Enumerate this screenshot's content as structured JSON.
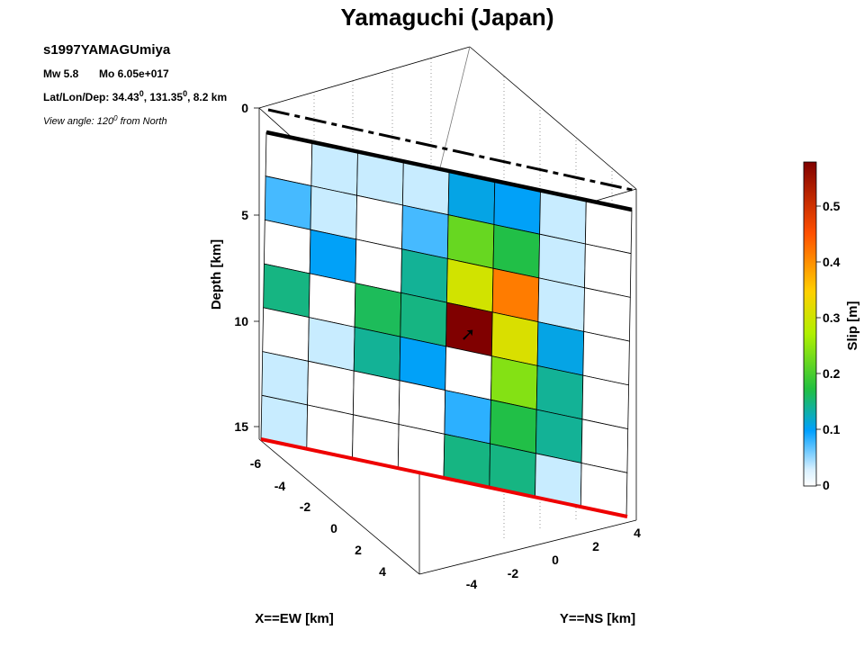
{
  "chart_data": {
    "type": "heatmap",
    "title": "Yamaguchi (Japan)",
    "event_id": "s1997YAMAGUmiya",
    "magnitude_text": "Mw 5.8",
    "moment_text": "Mo 6.05e+017",
    "location_prefix": "Lat/Lon/Dep: 34.43",
    "location_lon": ", 131.35",
    "location_dep": ", 8.2 km",
    "degree_symbol": "0",
    "view_prefix": "View angle: 120",
    "view_suffix": " from North",
    "zlabel": "Depth [km]",
    "xlabel": "X==EW [km]",
    "ylabel": "Y==NS [km]",
    "colorbar_label": "Slip [m]",
    "depth_ticks": [
      "0",
      "5",
      "10",
      "15"
    ],
    "x_ticks": [
      "-6",
      "-4",
      "-2",
      "0",
      "2",
      "4"
    ],
    "y_ticks": [
      "-4",
      "-2",
      "0",
      "2",
      "4"
    ],
    "colorbar_ticks": [
      "0",
      "0.1",
      "0.2",
      "0.3",
      "0.4",
      "0.5"
    ],
    "clim": [
      0,
      0.58
    ],
    "colormap": [
      "#ffffff",
      "#00a0ff",
      "#22c040",
      "#b0f000",
      "#ffd000",
      "#ff5000",
      "#800000"
    ],
    "grid_rows": 7,
    "grid_cols": 8,
    "slip": [
      [
        0.0,
        0.04,
        0.03,
        0.02,
        0.11,
        0.1,
        0.02,
        0.0
      ],
      [
        0.07,
        0.02,
        0.0,
        0.07,
        0.24,
        0.19,
        0.02,
        0.0
      ],
      [
        0.0,
        0.1,
        0.0,
        0.15,
        0.33,
        0.45,
        0.02,
        0.0
      ],
      [
        0.16,
        0.0,
        0.18,
        0.16,
        0.58,
        0.34,
        0.11,
        0.0
      ],
      [
        0.0,
        0.04,
        0.15,
        0.1,
        0.0,
        0.26,
        0.15,
        0.0
      ],
      [
        0.02,
        0.0,
        0.0,
        0.0,
        0.08,
        0.19,
        0.15,
        0.0
      ],
      [
        0.02,
        0.0,
        0.0,
        0.0,
        0.16,
        0.16,
        0.03,
        0.0
      ]
    ],
    "hypocenter_symbol": "➚"
  }
}
